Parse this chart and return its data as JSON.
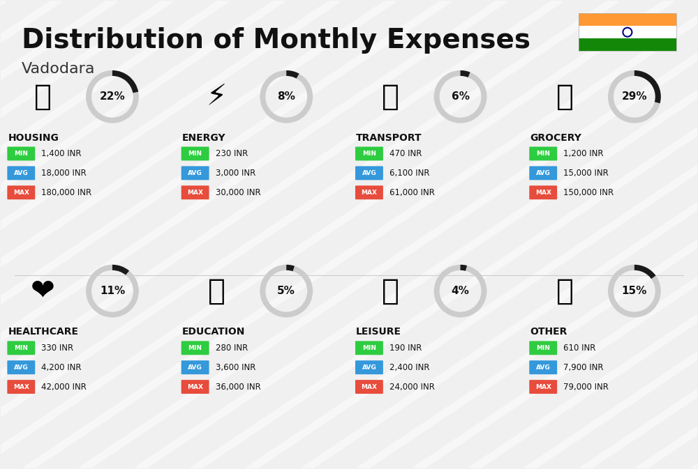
{
  "title": "Distribution of Monthly Expenses",
  "subtitle": "Vadodara",
  "background_color": "#f0f0f0",
  "categories": [
    {
      "name": "HOUSING",
      "pct": 22,
      "icon": "🏢",
      "min": "1,400 INR",
      "avg": "18,000 INR",
      "max": "180,000 INR",
      "row": 0,
      "col": 0
    },
    {
      "name": "ENERGY",
      "pct": 8,
      "icon": "⚡",
      "min": "230 INR",
      "avg": "3,000 INR",
      "max": "30,000 INR",
      "row": 0,
      "col": 1
    },
    {
      "name": "TRANSPORT",
      "pct": 6,
      "icon": "🚌",
      "min": "470 INR",
      "avg": "6,100 INR",
      "max": "61,000 INR",
      "row": 0,
      "col": 2
    },
    {
      "name": "GROCERY",
      "pct": 29,
      "icon": "🛒",
      "min": "1,200 INR",
      "avg": "15,000 INR",
      "max": "150,000 INR",
      "row": 0,
      "col": 3
    },
    {
      "name": "HEALTHCARE",
      "pct": 11,
      "icon": "❤",
      "min": "330 INR",
      "avg": "4,200 INR",
      "max": "42,000 INR",
      "row": 1,
      "col": 0
    },
    {
      "name": "EDUCATION",
      "pct": 5,
      "icon": "🎓",
      "min": "280 INR",
      "avg": "3,600 INR",
      "max": "36,000 INR",
      "row": 1,
      "col": 1
    },
    {
      "name": "LEISURE",
      "pct": 4,
      "icon": "🛍",
      "min": "190 INR",
      "avg": "2,400 INR",
      "max": "24,000 INR",
      "row": 1,
      "col": 2
    },
    {
      "name": "OTHER",
      "pct": 15,
      "icon": "💰",
      "min": "610 INR",
      "avg": "7,900 INR",
      "max": "79,000 INR",
      "row": 1,
      "col": 3
    }
  ],
  "color_min": "#2ecc40",
  "color_avg": "#3498db",
  "color_max": "#e74c3c",
  "color_ring_filled": "#1a1a1a",
  "color_ring_empty": "#cccccc",
  "flag_colors": [
    "#ff9933",
    "#ffffff",
    "#138808"
  ],
  "flag_ashoka": "#000080"
}
